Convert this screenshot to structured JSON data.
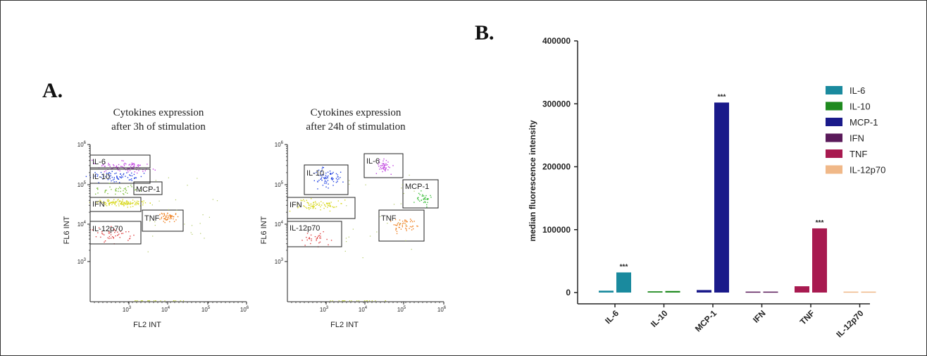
{
  "panels": {
    "a_label": "A.",
    "b_label": "B."
  },
  "flow_plots": [
    {
      "title_line1": "Cytokines expression",
      "title_line2": "after 3h of stimulation",
      "xlabel": "FL2 INT",
      "ylabel": "FL6 INT",
      "gates": [
        {
          "label": "IL-6",
          "color": "#c040e0"
        },
        {
          "label": "IL-10",
          "color": "#2040e0"
        },
        {
          "label": "MCP-1",
          "color": "#80c040"
        },
        {
          "label": "IFN",
          "color": "#d8d820"
        },
        {
          "label": "TNF",
          "color": "#f08020"
        },
        {
          "label": "IL-12p70",
          "color": "#e04040"
        }
      ]
    },
    {
      "title_line1": "Cytokines expression",
      "title_line2": "after 24h of stimulation",
      "xlabel": "FL2 INT",
      "ylabel": "FL6 INT",
      "gates": [
        {
          "label": "IL-6",
          "color": "#c040e0"
        },
        {
          "label": "IL-10",
          "color": "#2040e0"
        },
        {
          "label": "MCP-1",
          "color": "#40c040"
        },
        {
          "label": "IFN",
          "color": "#d8d820"
        },
        {
          "label": "TNF",
          "color": "#f08020"
        },
        {
          "label": "IL-12p70",
          "color": "#e04040"
        }
      ]
    }
  ],
  "flow_axis": {
    "y_ticks": [
      {
        "base": "10",
        "exp": "6"
      },
      {
        "base": "10",
        "exp": "5"
      },
      {
        "base": "10",
        "exp": "4"
      },
      {
        "base": "10",
        "exp": "3"
      }
    ],
    "x_ticks": [
      {
        "base": "10",
        "exp": "3"
      },
      {
        "base": "10",
        "exp": "4"
      },
      {
        "base": "10",
        "exp": "5"
      },
      {
        "base": "10",
        "exp": "6"
      }
    ]
  },
  "chart_data": {
    "type": "bar",
    "categories": [
      "IL-6",
      "IL-10",
      "MCP-1",
      "IFN",
      "TNF",
      "IL-12p70"
    ],
    "bar_pairs": [
      {
        "category": "IL-6",
        "color": "#1a8a9e",
        "values": [
          3000,
          32000
        ],
        "significance": "***"
      },
      {
        "category": "IL-10",
        "color": "#1f8a1f",
        "values": [
          2000,
          2500
        ],
        "significance": ""
      },
      {
        "category": "MCP-1",
        "color": "#1a1a8a",
        "values": [
          4000,
          302000
        ],
        "significance": "***"
      },
      {
        "category": "IFN",
        "color": "#5a1a5a",
        "values": [
          1500,
          1500
        ],
        "significance": ""
      },
      {
        "category": "TNF",
        "color": "#a81a50",
        "values": [
          10000,
          102000
        ],
        "significance": "***"
      },
      {
        "category": "IL-12p70",
        "color": "#f0b888",
        "values": [
          1500,
          1500
        ],
        "significance": ""
      }
    ],
    "ylabel": "median fluorescence intensity",
    "ylim": [
      0,
      400000
    ],
    "y_ticks": [
      "0",
      "100000",
      "200000",
      "300000",
      "400000"
    ],
    "legend": {
      "placement": "top-right",
      "entries": [
        {
          "label": "IL-6",
          "color": "#1a8a9e"
        },
        {
          "label": "IL-10",
          "color": "#1f8a1f"
        },
        {
          "label": "MCP-1",
          "color": "#1a1a8a"
        },
        {
          "label": "IFN",
          "color": "#5a1a5a"
        },
        {
          "label": "TNF",
          "color": "#a81a50"
        },
        {
          "label": "IL-12p70",
          "color": "#f0b888"
        }
      ]
    }
  }
}
